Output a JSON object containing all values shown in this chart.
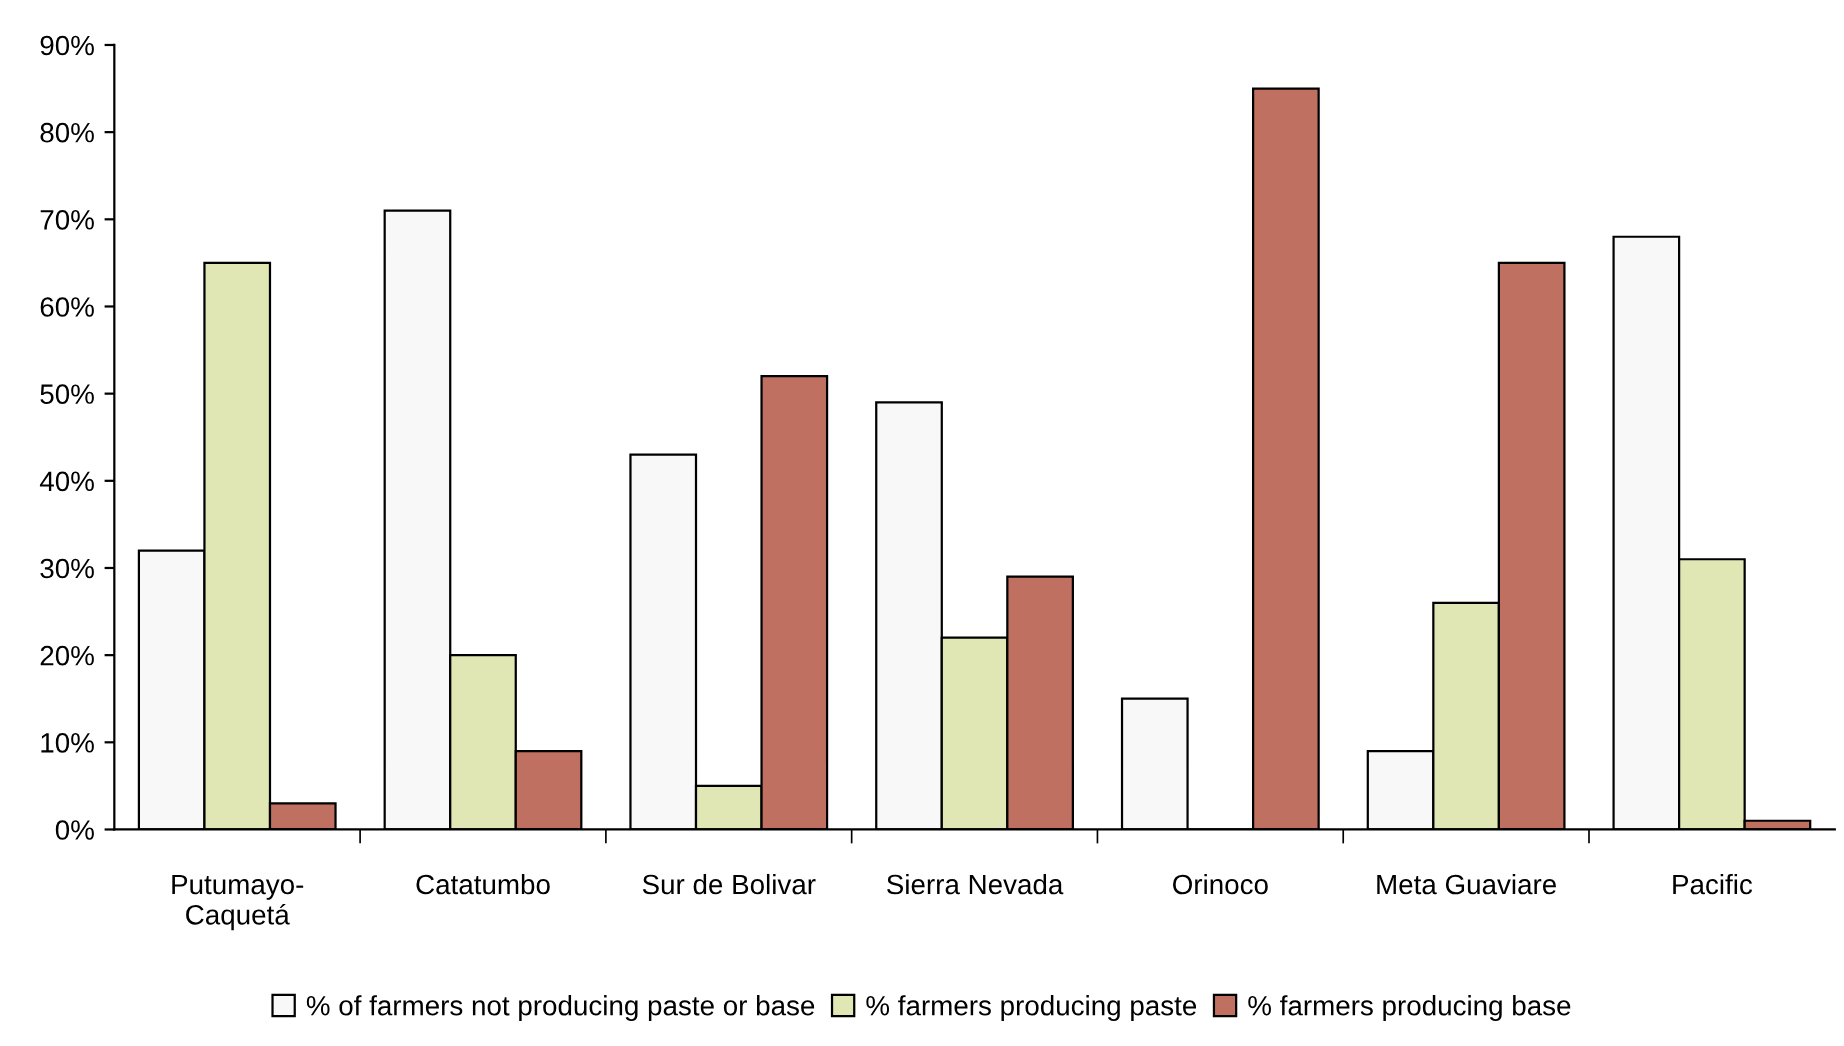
{
  "chart_data": {
    "type": "bar",
    "categories": [
      "Putumayo-\nCaquetá",
      "Catatumbo",
      "Sur de Bolivar",
      "Sierra Nevada",
      "Orinoco",
      "Meta Guaviare",
      "Pacific"
    ],
    "series": [
      {
        "name": "% of farmers not producing paste or base",
        "color": "#f8f8f8",
        "values": [
          32,
          71,
          43,
          49,
          15,
          9,
          68
        ]
      },
      {
        "name": "% farmers producing paste",
        "color": "#e0e6b4",
        "values": [
          65,
          20,
          5,
          22,
          0,
          26,
          31
        ]
      },
      {
        "name": "% farmers producing base",
        "color": "#bf7060",
        "values": [
          3,
          9,
          52,
          29,
          85,
          65,
          1
        ]
      }
    ],
    "ylim": [
      0,
      90
    ],
    "yticks": [
      {
        "value": 0,
        "label": "0%"
      },
      {
        "value": 10,
        "label": "10%"
      },
      {
        "value": 20,
        "label": "20%"
      },
      {
        "value": 30,
        "label": "30%"
      },
      {
        "value": 40,
        "label": "40%"
      },
      {
        "value": 50,
        "label": "50%"
      },
      {
        "value": 60,
        "label": "60%"
      },
      {
        "value": 70,
        "label": "70%"
      },
      {
        "value": 80,
        "label": "80%"
      },
      {
        "value": 90,
        "label": "90%"
      }
    ],
    "grid": false,
    "legend": "bottom"
  }
}
